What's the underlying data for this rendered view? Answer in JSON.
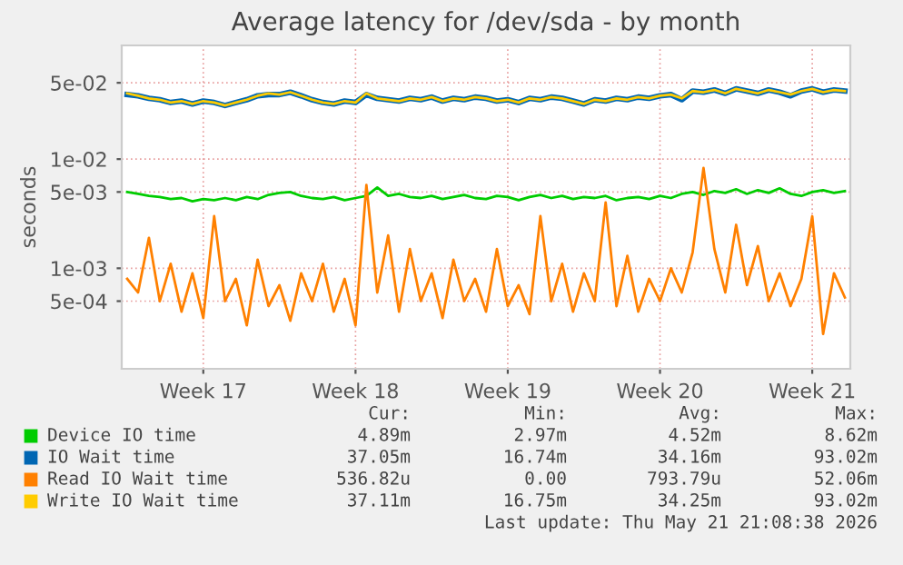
{
  "chart_data": {
    "type": "line",
    "title": "Average latency for /dev/sda - by month",
    "ylabel": "seconds",
    "log": "y",
    "grid": true,
    "legend": "bottom",
    "categories": [
      null,
      null,
      null,
      null,
      null,
      null,
      null,
      "Week 17",
      null,
      null,
      null,
      null,
      null,
      null,
      null,
      null,
      null,
      null,
      null,
      null,
      null,
      "Week 18",
      null,
      null,
      null,
      null,
      null,
      null,
      null,
      null,
      null,
      null,
      null,
      null,
      null,
      "Week 19",
      null,
      null,
      null,
      null,
      null,
      null,
      null,
      null,
      null,
      null,
      null,
      null,
      null,
      "Week 20",
      null,
      null,
      null,
      null,
      null,
      null,
      null,
      null,
      null,
      null,
      null,
      null,
      null,
      "Week 21",
      null,
      null,
      null
    ],
    "ylim": [
      0.00012,
      0.11
    ],
    "yticks": [
      {
        "value": 0.0005,
        "label": "5e-04"
      },
      {
        "value": 0.001,
        "label": "1e-03"
      },
      {
        "value": 0.005,
        "label": "5e-03"
      },
      {
        "value": 0.01,
        "label": "1e-02"
      },
      {
        "value": 0.05,
        "label": "5e-02"
      }
    ],
    "series": [
      {
        "name": "Device IO time",
        "color": "#00cc00",
        "values": [
          0.005,
          0.0048,
          0.0046,
          0.0045,
          0.0043,
          0.0044,
          0.0041,
          0.0043,
          0.0042,
          0.0044,
          0.0042,
          0.0045,
          0.0043,
          0.0047,
          0.0049,
          0.005,
          0.0046,
          0.0044,
          0.0043,
          0.0045,
          0.0042,
          0.0044,
          0.0046,
          0.0055,
          0.0046,
          0.0048,
          0.0045,
          0.0044,
          0.0046,
          0.0043,
          0.0045,
          0.0047,
          0.0044,
          0.0043,
          0.0046,
          0.0045,
          0.0042,
          0.0045,
          0.0047,
          0.0044,
          0.0046,
          0.0043,
          0.0045,
          0.0044,
          0.0046,
          0.0042,
          0.0044,
          0.0045,
          0.0043,
          0.0046,
          0.0044,
          0.0048,
          0.005,
          0.0047,
          0.0051,
          0.0049,
          0.0053,
          0.0048,
          0.0052,
          0.0049,
          0.0054,
          0.0048,
          0.0046,
          0.005,
          0.0052,
          0.0049,
          0.0051
        ]
      },
      {
        "name": "IO Wait time",
        "color": "#0066b3",
        "values": [
          0.039,
          0.038,
          0.036,
          0.035,
          0.033,
          0.034,
          0.032,
          0.034,
          0.033,
          0.031,
          0.033,
          0.035,
          0.038,
          0.039,
          0.039,
          0.041,
          0.038,
          0.035,
          0.033,
          0.032,
          0.034,
          0.033,
          0.039,
          0.036,
          0.035,
          0.034,
          0.036,
          0.035,
          0.037,
          0.034,
          0.036,
          0.035,
          0.037,
          0.036,
          0.034,
          0.035,
          0.033,
          0.036,
          0.035,
          0.037,
          0.036,
          0.034,
          0.032,
          0.035,
          0.034,
          0.036,
          0.035,
          0.037,
          0.036,
          0.038,
          0.039,
          0.035,
          0.042,
          0.041,
          0.043,
          0.04,
          0.044,
          0.042,
          0.04,
          0.043,
          0.041,
          0.038,
          0.042,
          0.044,
          0.041,
          0.043,
          0.042
        ]
      },
      {
        "name": "Read IO Wait time",
        "color": "#ff8000",
        "values": [
          0.0008,
          0.0006,
          0.0019,
          0.0005,
          0.0011,
          0.0004,
          0.0009,
          0.00035,
          0.003,
          0.0005,
          0.0008,
          0.0003,
          0.0012,
          0.00045,
          0.0007,
          0.00033,
          0.0009,
          0.0005,
          0.0011,
          0.0004,
          0.0008,
          0.0003,
          0.0058,
          0.0006,
          0.002,
          0.0004,
          0.0015,
          0.0005,
          0.0009,
          0.00035,
          0.0012,
          0.0005,
          0.0008,
          0.0004,
          0.0015,
          0.00045,
          0.0007,
          0.00038,
          0.003,
          0.0005,
          0.0011,
          0.0004,
          0.0009,
          0.0005,
          0.004,
          0.00045,
          0.0013,
          0.0004,
          0.0008,
          0.0005,
          0.001,
          0.0006,
          0.0014,
          0.0083,
          0.0015,
          0.0006,
          0.0025,
          0.0007,
          0.0016,
          0.0005,
          0.0009,
          0.00045,
          0.0008,
          0.003,
          0.00025,
          0.0009,
          0.00054
        ]
      },
      {
        "name": "Write IO Wait time",
        "color": "#ffcc00",
        "values": [
          0.04,
          0.038,
          0.036,
          0.035,
          0.033,
          0.034,
          0.032,
          0.034,
          0.033,
          0.031,
          0.033,
          0.035,
          0.038,
          0.04,
          0.039,
          0.041,
          0.038,
          0.035,
          0.033,
          0.032,
          0.034,
          0.033,
          0.04,
          0.036,
          0.035,
          0.034,
          0.036,
          0.035,
          0.037,
          0.034,
          0.036,
          0.035,
          0.037,
          0.036,
          0.034,
          0.035,
          0.033,
          0.036,
          0.035,
          0.037,
          0.036,
          0.034,
          0.032,
          0.035,
          0.034,
          0.036,
          0.035,
          0.037,
          0.036,
          0.038,
          0.039,
          0.036,
          0.042,
          0.041,
          0.043,
          0.04,
          0.044,
          0.042,
          0.04,
          0.043,
          0.041,
          0.039,
          0.042,
          0.044,
          0.041,
          0.043,
          0.042
        ]
      }
    ],
    "annotations": [
      "Cur:",
      "Min:",
      "Avg:",
      "Max:",
      "4.89m",
      "2.97m",
      "4.52m",
      "8.62m",
      "37.05m",
      "16.74m",
      "34.16m",
      "93.02m",
      "536.82u",
      "0.00",
      "793.79u",
      "52.06m",
      "37.11m",
      "16.75m",
      "34.25m",
      "93.02m",
      "Last update: Thu May 21 21:08:38 2026"
    ]
  }
}
